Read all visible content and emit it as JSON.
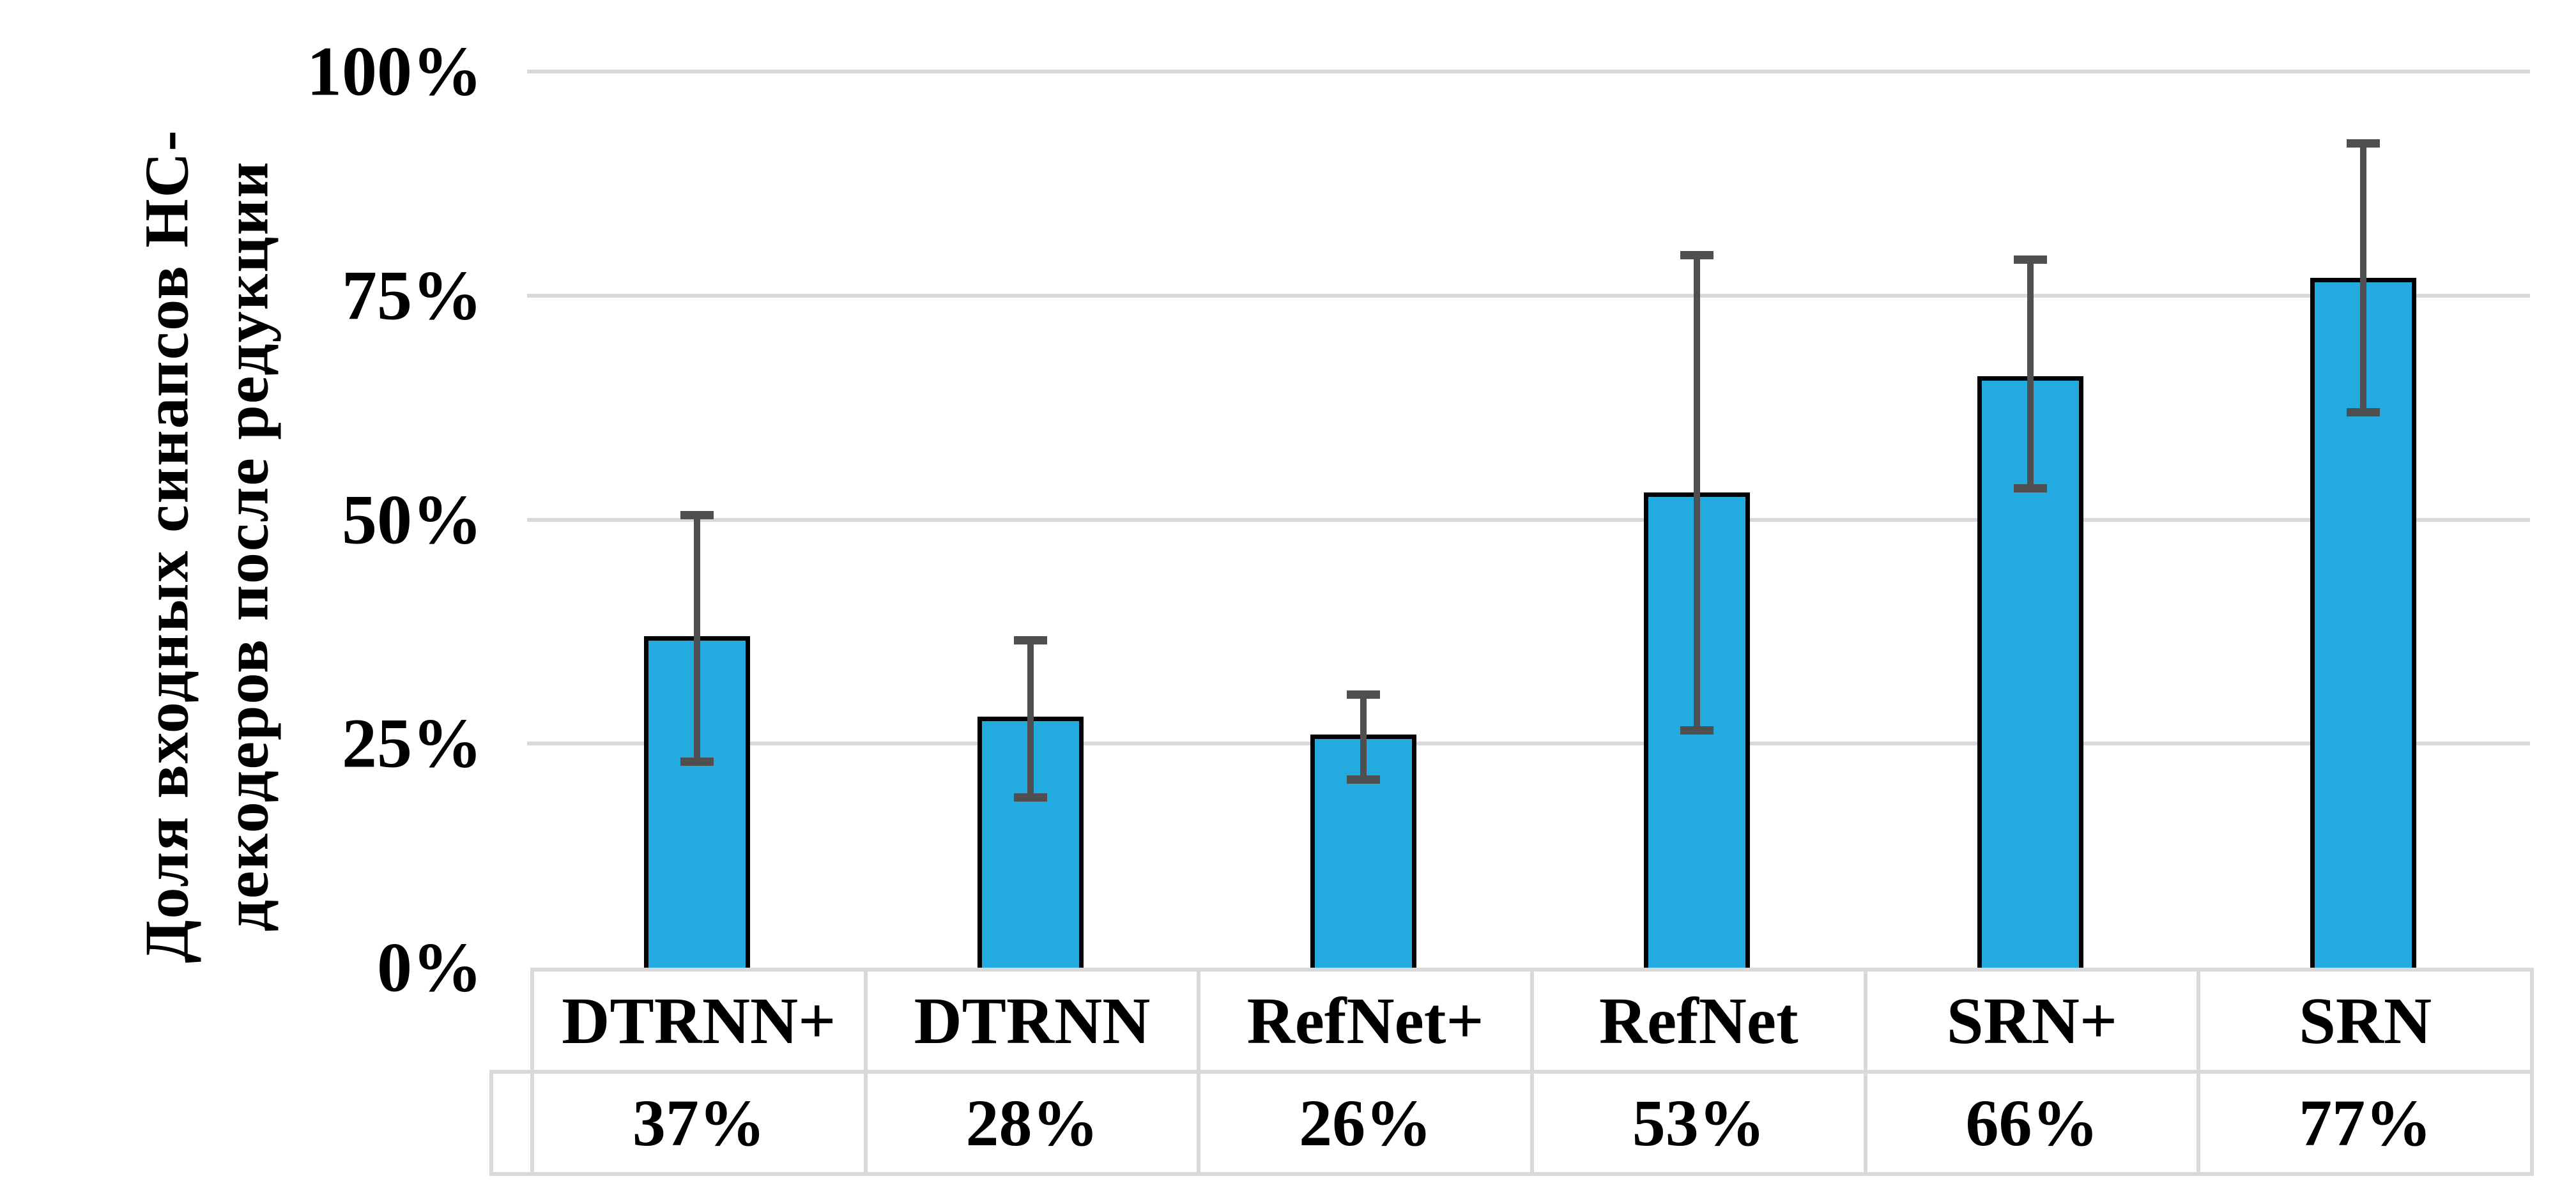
{
  "chart_data": {
    "type": "bar",
    "title": "",
    "ylabel": "Доля входных синапсов НС-\nдекодеров после редукции",
    "xlabel": "",
    "categories": [
      "DTRNN+",
      "DTRNN",
      "RefNet+",
      "RefNet",
      "SRN+",
      "SRN"
    ],
    "values": [
      37,
      28,
      26,
      53,
      66,
      77
    ],
    "value_labels": [
      "37%",
      "28%",
      "26%",
      "53%",
      "66%",
      "77%"
    ],
    "error_low": [
      23,
      19,
      21,
      26.5,
      53.5,
      62
    ],
    "error_high": [
      50.5,
      36.5,
      30.5,
      79.5,
      79,
      92
    ],
    "ylim": [
      0,
      100
    ],
    "yticks": [
      {
        "v": 100,
        "label": "100%"
      },
      {
        "v": 75,
        "label": "75%"
      },
      {
        "v": 50,
        "label": "50%"
      },
      {
        "v": 25,
        "label": "25%"
      },
      {
        "v": 0,
        "label": "0%"
      }
    ],
    "grid": "horizontal",
    "legend": "none",
    "data_table_shown": true,
    "colors": {
      "bar_fill": "#22AAE1",
      "bar_border": "#000000",
      "error_bar": "#4F4F4F",
      "gridline": "#D9D9D9",
      "table_border": "#D9D9D9",
      "text": "#000000",
      "background": "#FFFFFF"
    }
  }
}
